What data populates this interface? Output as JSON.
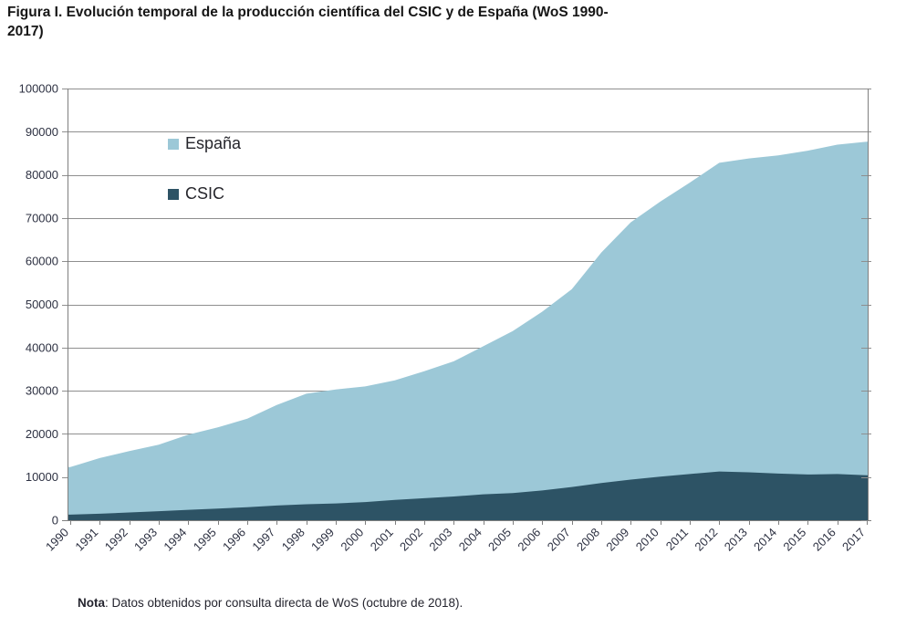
{
  "title": "Figura I. Evolución temporal de la producción científica del CSIC y de España (WoS 1990-\n2017)",
  "note": {
    "label": "Nota",
    "text": ": Datos obtenidos por consulta directa de WoS (octubre de 2018)."
  },
  "colors": {
    "espana": "#9cc8d7",
    "csic": "#2d5365",
    "grid": "#8f8f8f",
    "border": "#7f7f7f",
    "axis_text": "#2d3142"
  },
  "chart_data": {
    "type": "area",
    "stacked": false,
    "title": "Evolución temporal de la producción científica del CSIC y de España (WoS 1990-2017)",
    "xlabel": "",
    "ylabel": "",
    "categories": [
      "1990",
      "1991",
      "1992",
      "1993",
      "1994",
      "1995",
      "1996",
      "1997",
      "1998",
      "1999",
      "2000",
      "2001",
      "2002",
      "2003",
      "2004",
      "2005",
      "2006",
      "2007",
      "2008",
      "2009",
      "2010",
      "2011",
      "2012",
      "2013",
      "2014",
      "2015",
      "2016",
      "2017"
    ],
    "series": [
      {
        "key": "espana",
        "name": "España",
        "color": "#9cc8d7",
        "values": [
          12300,
          14400,
          16000,
          17500,
          19800,
          21500,
          23500,
          26700,
          29300,
          30300,
          31000,
          32400,
          34500,
          36800,
          40300,
          43800,
          48300,
          53500,
          62000,
          69000,
          73800,
          78200,
          82800,
          83800,
          84500,
          85600,
          87000,
          87700
        ]
      },
      {
        "key": "csic",
        "name": "CSIC",
        "color": "#2d5365",
        "values": [
          1300,
          1500,
          1800,
          2100,
          2400,
          2700,
          3000,
          3400,
          3700,
          3900,
          4200,
          4700,
          5100,
          5500,
          6000,
          6300,
          6900,
          7700,
          8600,
          9400,
          10100,
          10700,
          11300,
          11100,
          10800,
          10600,
          10700,
          10400
        ]
      }
    ],
    "ylim": [
      0,
      100000
    ],
    "ytick_step": 10000,
    "grid": true,
    "legend_position": "inside-top-left",
    "x_label_rotation": -45
  }
}
